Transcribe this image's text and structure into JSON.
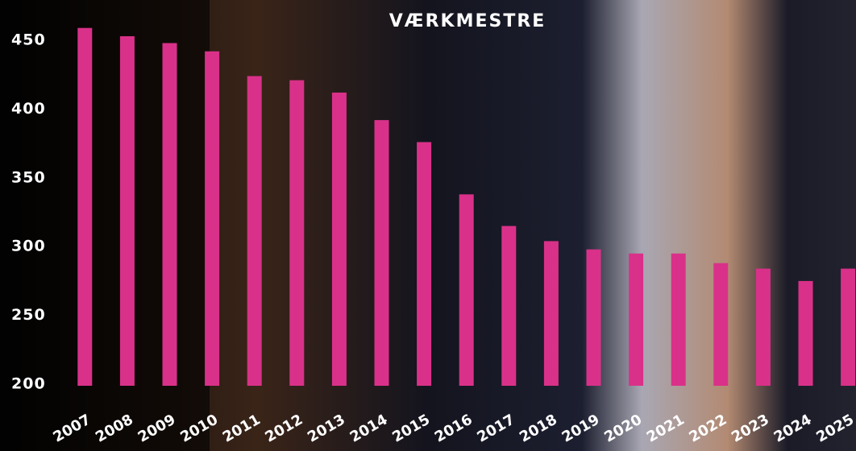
{
  "chart_data": {
    "type": "bar",
    "title": "VÆRKMESTRE",
    "categories": [
      "2007",
      "2008",
      "2009",
      "2010",
      "2011",
      "2012",
      "2013",
      "2014",
      "2015",
      "2016",
      "2017",
      "2018",
      "2019",
      "2020",
      "2021",
      "2022",
      "2023",
      "2024",
      "2025"
    ],
    "values": [
      459,
      453,
      448,
      442,
      424,
      421,
      412,
      392,
      376,
      338,
      315,
      304,
      298,
      295,
      295,
      288,
      284,
      275,
      284
    ],
    "color": "#d93189",
    "ylim": [
      200,
      460
    ],
    "yticks": [
      200,
      250,
      300,
      350,
      400,
      450
    ],
    "grid": false
  }
}
